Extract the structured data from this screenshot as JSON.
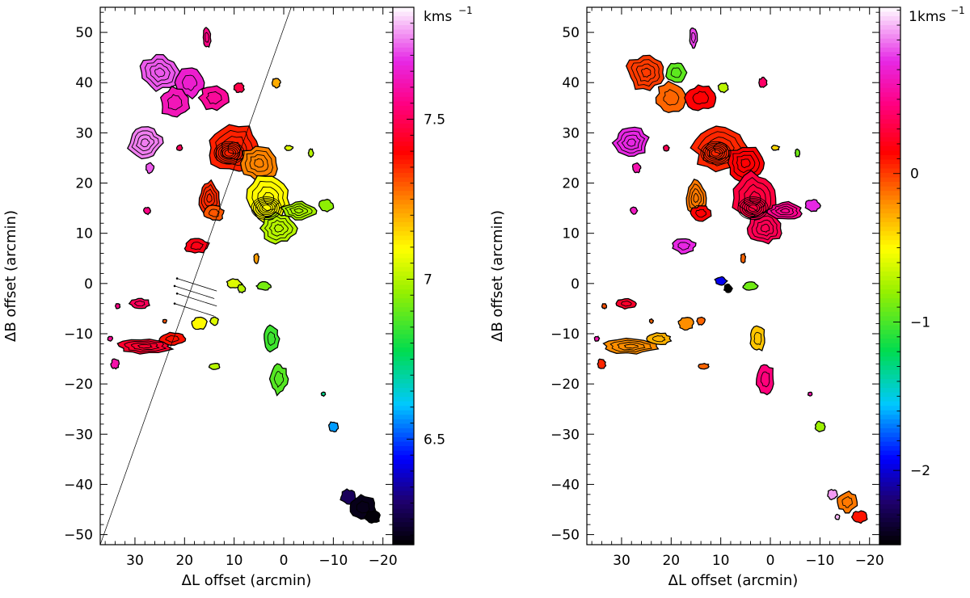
{
  "chart_data": [
    {
      "type": "heatmap",
      "panel": "left",
      "xlabel": "ΔL offset (arcmin)",
      "ylabel": "ΔB offset (arcmin)",
      "xlim": [
        37,
        -22
      ],
      "ylim": [
        -52,
        55
      ],
      "x_ticks": [
        30,
        20,
        10,
        0,
        -10,
        -20
      ],
      "x_tick_labels": [
        "30",
        "20",
        "10",
        "0",
        "−10",
        "−20"
      ],
      "y_ticks": [
        50,
        40,
        30,
        20,
        10,
        0,
        -10,
        -20,
        -30,
        -40,
        -50
      ],
      "y_tick_labels": [
        "50",
        "40",
        "30",
        "20",
        "10",
        "0",
        "−10",
        "−20",
        "−30",
        "−40",
        "−50"
      ],
      "colorbar": {
        "unit_label": "kms",
        "unit_exponent": "−1",
        "range": [
          6.17,
          7.85
        ],
        "ticks": [
          7.5,
          7,
          6.5
        ],
        "tick_labels": [
          "7.5",
          "7",
          "6.5"
        ],
        "colormap": "rainbow (black-blue-cyan-green-yellow-orange-red-magenta-white)"
      },
      "overlay_line": {
        "from": [
          37,
          -52
        ],
        "to": [
          -1.5,
          55
        ]
      },
      "vectors": [
        {
          "from": [
            22,
            -0.5
          ],
          "to": [
            14,
            -3
          ]
        },
        {
          "from": [
            21.5,
            -2
          ],
          "to": [
            13.5,
            -4.5
          ]
        },
        {
          "from": [
            22,
            -4
          ],
          "to": [
            14,
            -6.5
          ]
        },
        {
          "from": [
            21.5,
            1
          ],
          "to": [
            13.5,
            -1.5
          ]
        }
      ],
      "emission_peaks": [
        {
          "l": 11,
          "b": 26,
          "v": 7.38
        },
        {
          "l": 3.5,
          "b": 15,
          "v": 7.08
        }
      ],
      "clumps": [
        {
          "l": 25,
          "b": 42,
          "rl": 4,
          "rb": 3.5,
          "v": 7.72
        },
        {
          "l": 19,
          "b": 40,
          "rl": 3,
          "rb": 3,
          "v": 7.65
        },
        {
          "l": 14,
          "b": 37,
          "rl": 3,
          "rb": 2.5,
          "v": 7.58
        },
        {
          "l": 22,
          "b": 36,
          "rl": 3,
          "rb": 3,
          "v": 7.62
        },
        {
          "l": 15.5,
          "b": 49,
          "rl": 0.8,
          "rb": 2,
          "v": 7.55
        },
        {
          "l": 9,
          "b": 39,
          "rl": 1,
          "rb": 1,
          "v": 7.48
        },
        {
          "l": 1.5,
          "b": 40,
          "rl": 0.8,
          "rb": 1,
          "v": 7.2
        },
        {
          "l": 28,
          "b": 28,
          "rl": 3.5,
          "rb": 3,
          "v": 7.75
        },
        {
          "l": 27,
          "b": 23,
          "rl": 0.8,
          "rb": 1,
          "v": 7.72
        },
        {
          "l": 21,
          "b": 27,
          "rl": 0.6,
          "rb": 0.6,
          "v": 7.5
        },
        {
          "l": 27.5,
          "b": 14.5,
          "rl": 0.7,
          "rb": 0.7,
          "v": 7.55
        },
        {
          "l": 10,
          "b": 27,
          "rl": 5.5,
          "rb": 4.5,
          "v": 7.36
        },
        {
          "l": 5,
          "b": 24,
          "rl": 4,
          "rb": 3.5,
          "v": 7.25
        },
        {
          "l": 3,
          "b": 17,
          "rl": 4.5,
          "rb": 5,
          "v": 7.1
        },
        {
          "l": 1,
          "b": 11,
          "rl": 3.5,
          "rb": 3,
          "v": 7.0
        },
        {
          "l": -3,
          "b": 14.5,
          "rl": 3.5,
          "rb": 1.7,
          "v": 6.98
        },
        {
          "l": -8.5,
          "b": 15.5,
          "rl": 1.5,
          "rb": 1.2,
          "v": 6.95
        },
        {
          "l": 15,
          "b": 17,
          "rl": 2,
          "rb": 3.5,
          "v": 7.35
        },
        {
          "l": 14,
          "b": 14,
          "rl": 2,
          "rb": 1.5,
          "v": 7.3
        },
        {
          "l": 17.5,
          "b": 7.5,
          "rl": 2.5,
          "rb": 1.5,
          "v": 7.42
        },
        {
          "l": 5.5,
          "b": 5,
          "rl": 0.5,
          "rb": 1,
          "v": 7.22
        },
        {
          "l": -1,
          "b": 27,
          "rl": 0.8,
          "rb": 0.5,
          "v": 7.05
        },
        {
          "l": -5.5,
          "b": 26,
          "rl": 0.5,
          "rb": 0.8,
          "v": 7.0
        },
        {
          "l": 10,
          "b": 0,
          "rl": 1.5,
          "rb": 1,
          "v": 7.05
        },
        {
          "l": 8.5,
          "b": -1,
          "rl": 0.8,
          "rb": 0.8,
          "v": 7.0
        },
        {
          "l": 4,
          "b": -0.5,
          "rl": 1.5,
          "rb": 0.8,
          "v": 6.92
        },
        {
          "l": 29,
          "b": -4,
          "rl": 2,
          "rb": 1,
          "v": 7.5
        },
        {
          "l": 33.5,
          "b": -4.5,
          "rl": 0.5,
          "rb": 0.5,
          "v": 7.55
        },
        {
          "l": 28,
          "b": -12.5,
          "rl": 5.5,
          "rb": 1.5,
          "v": 7.45
        },
        {
          "l": 22.5,
          "b": -11,
          "rl": 2.5,
          "rb": 1.2,
          "v": 7.38
        },
        {
          "l": 34,
          "b": -16,
          "rl": 0.8,
          "rb": 1,
          "v": 7.6
        },
        {
          "l": 35,
          "b": -11,
          "rl": 0.5,
          "rb": 0.5,
          "v": 7.58
        },
        {
          "l": 24,
          "b": -7.5,
          "rl": 0.4,
          "rb": 0.4,
          "v": 7.3
        },
        {
          "l": 17,
          "b": -8,
          "rl": 1.5,
          "rb": 1.2,
          "v": 7.1
        },
        {
          "l": 14,
          "b": -7.5,
          "rl": 0.8,
          "rb": 0.8,
          "v": 7.05
        },
        {
          "l": 14,
          "b": -16.5,
          "rl": 1.2,
          "rb": 0.6,
          "v": 7.0
        },
        {
          "l": 2.5,
          "b": -11,
          "rl": 1.5,
          "rb": 2.5,
          "v": 6.85
        },
        {
          "l": 1,
          "b": -19,
          "rl": 1.8,
          "rb": 3,
          "v": 6.88
        },
        {
          "l": -8,
          "b": -22,
          "rl": 0.4,
          "rb": 0.4,
          "v": 6.72
        },
        {
          "l": -10,
          "b": -28.5,
          "rl": 1,
          "rb": 1,
          "v": 6.57
        },
        {
          "l": -13,
          "b": -42.5,
          "rl": 1.5,
          "rb": 1.5,
          "v": 6.28
        },
        {
          "l": -16,
          "b": -44.5,
          "rl": 2.5,
          "rb": 2.5,
          "v": 6.2
        },
        {
          "l": -18,
          "b": -46.5,
          "rl": 1.5,
          "rb": 1.2,
          "v": 6.18
        }
      ]
    },
    {
      "type": "heatmap",
      "panel": "right",
      "xlabel": "ΔL offset (arcmin)",
      "ylabel": "ΔB offset (arcmin)",
      "xlim": [
        37,
        -22
      ],
      "ylim": [
        -52,
        55
      ],
      "x_ticks": [
        30,
        20,
        10,
        0,
        -10,
        -20
      ],
      "x_tick_labels": [
        "30",
        "20",
        "10",
        "0",
        "−10",
        "−20"
      ],
      "y_ticks": [
        50,
        40,
        30,
        20,
        10,
        0,
        -10,
        -20,
        -30,
        -40,
        -50
      ],
      "y_tick_labels": [
        "50",
        "40",
        "30",
        "20",
        "10",
        "0",
        "−10",
        "−20",
        "−30",
        "−40",
        "−50"
      ],
      "colorbar": {
        "unit_prefix": "1",
        "unit_label": "kms",
        "unit_exponent": "−1",
        "range": [
          -2.5,
          1.12
        ],
        "ticks": [
          0,
          -1,
          -2
        ],
        "tick_labels": [
          "0",
          "−1",
          "−2"
        ],
        "colormap": "rainbow (black-blue-cyan-green-yellow-orange-red-magenta-white)"
      },
      "emission_peaks": [
        {
          "l": 11,
          "b": 26,
          "v": 0.05
        },
        {
          "l": 3.5,
          "b": 15,
          "v": 0.25
        }
      ],
      "clumps": [
        {
          "l": 25,
          "b": 42,
          "rl": 4,
          "rb": 3.5,
          "v": 0.0
        },
        {
          "l": 19,
          "b": 42,
          "rl": 2,
          "rb": 2,
          "v": -0.95
        },
        {
          "l": 20,
          "b": 37,
          "rl": 3,
          "rb": 3,
          "v": -0.1
        },
        {
          "l": 14,
          "b": 37,
          "rl": 3,
          "rb": 2.5,
          "v": 0.15
        },
        {
          "l": 15.5,
          "b": 49,
          "rl": 0.8,
          "rb": 2,
          "v": 0.8
        },
        {
          "l": 9.5,
          "b": 39,
          "rl": 1,
          "rb": 1,
          "v": -0.7
        },
        {
          "l": 1.5,
          "b": 40,
          "rl": 0.8,
          "rb": 1,
          "v": 0.4
        },
        {
          "l": 28,
          "b": 28,
          "rl": 3.5,
          "rb": 3,
          "v": 0.75
        },
        {
          "l": 27,
          "b": 23,
          "rl": 0.8,
          "rb": 1,
          "v": 0.6
        },
        {
          "l": 21,
          "b": 27,
          "rl": 0.6,
          "rb": 0.6,
          "v": 0.35
        },
        {
          "l": 27.5,
          "b": 14.5,
          "rl": 0.7,
          "rb": 0.7,
          "v": 0.65
        },
        {
          "l": 10,
          "b": 27,
          "rl": 5.5,
          "rb": 4.5,
          "v": 0.05
        },
        {
          "l": 5,
          "b": 24,
          "rl": 4,
          "rb": 3.5,
          "v": 0.15
        },
        {
          "l": 3,
          "b": 17,
          "rl": 4.5,
          "rb": 5,
          "v": 0.3
        },
        {
          "l": 1,
          "b": 11,
          "rl": 3.5,
          "rb": 3,
          "v": 0.35
        },
        {
          "l": -3,
          "b": 14.5,
          "rl": 3.5,
          "rb": 1.7,
          "v": 0.5
        },
        {
          "l": -8.5,
          "b": 15.5,
          "rl": 1.5,
          "rb": 1.2,
          "v": 0.75
        },
        {
          "l": 15,
          "b": 17,
          "rl": 2,
          "rb": 3.5,
          "v": -0.15
        },
        {
          "l": 14,
          "b": 14,
          "rl": 2,
          "rb": 1.5,
          "v": 0.15
        },
        {
          "l": 17.5,
          "b": 7.5,
          "rl": 2.5,
          "rb": 1.5,
          "v": 0.75
        },
        {
          "l": 5.5,
          "b": 5,
          "rl": 0.5,
          "rb": 1,
          "v": -0.1
        },
        {
          "l": -1,
          "b": 27,
          "rl": 0.8,
          "rb": 0.5,
          "v": -0.4
        },
        {
          "l": -5.5,
          "b": 26,
          "rl": 0.5,
          "rb": 0.8,
          "v": -0.9
        },
        {
          "l": 10,
          "b": 0.5,
          "rl": 1.2,
          "rb": 0.8,
          "v": -1.95
        },
        {
          "l": 8.5,
          "b": -1,
          "rl": 0.8,
          "rb": 0.8,
          "v": -2.5
        },
        {
          "l": 4,
          "b": -0.5,
          "rl": 1.5,
          "rb": 0.8,
          "v": -0.9
        },
        {
          "l": 29,
          "b": -4,
          "rl": 2,
          "rb": 1,
          "v": 0.25
        },
        {
          "l": 33.5,
          "b": -4.5,
          "rl": 0.5,
          "rb": 0.5,
          "v": -0.05
        },
        {
          "l": 28,
          "b": -12.5,
          "rl": 5.5,
          "rb": 1.5,
          "v": -0.2
        },
        {
          "l": 22.5,
          "b": -11,
          "rl": 2.5,
          "rb": 1.2,
          "v": -0.3
        },
        {
          "l": 34,
          "b": -16,
          "rl": 0.8,
          "rb": 1,
          "v": 0.05
        },
        {
          "l": 35,
          "b": -11,
          "rl": 0.5,
          "rb": 0.5,
          "v": 0.6
        },
        {
          "l": 24,
          "b": -7.5,
          "rl": 0.4,
          "rb": 0.4,
          "v": -0.1
        },
        {
          "l": 17,
          "b": -8,
          "rl": 1.5,
          "rb": 1.2,
          "v": -0.2
        },
        {
          "l": 14,
          "b": -7.5,
          "rl": 0.8,
          "rb": 0.8,
          "v": -0.1
        },
        {
          "l": 13.5,
          "b": -16.5,
          "rl": 1.2,
          "rb": 0.6,
          "v": -0.1
        },
        {
          "l": 2.5,
          "b": -11,
          "rl": 1.5,
          "rb": 2.5,
          "v": -0.35
        },
        {
          "l": 1,
          "b": -19,
          "rl": 1.8,
          "rb": 3,
          "v": 0.45
        },
        {
          "l": -8,
          "b": -22,
          "rl": 0.4,
          "rb": 0.4,
          "v": 0.6
        },
        {
          "l": -10,
          "b": -28.5,
          "rl": 1,
          "rb": 1,
          "v": -0.78
        },
        {
          "l": -12.5,
          "b": -42,
          "rl": 1,
          "rb": 1,
          "v": 0.95
        },
        {
          "l": -15.5,
          "b": -43.5,
          "rl": 2,
          "rb": 2,
          "v": -0.15
        },
        {
          "l": -18,
          "b": -46.5,
          "rl": 1.5,
          "rb": 1.2,
          "v": 0.1
        },
        {
          "l": -13.5,
          "b": -46.5,
          "rl": 0.5,
          "rb": 0.5,
          "v": 1.0
        }
      ]
    }
  ]
}
